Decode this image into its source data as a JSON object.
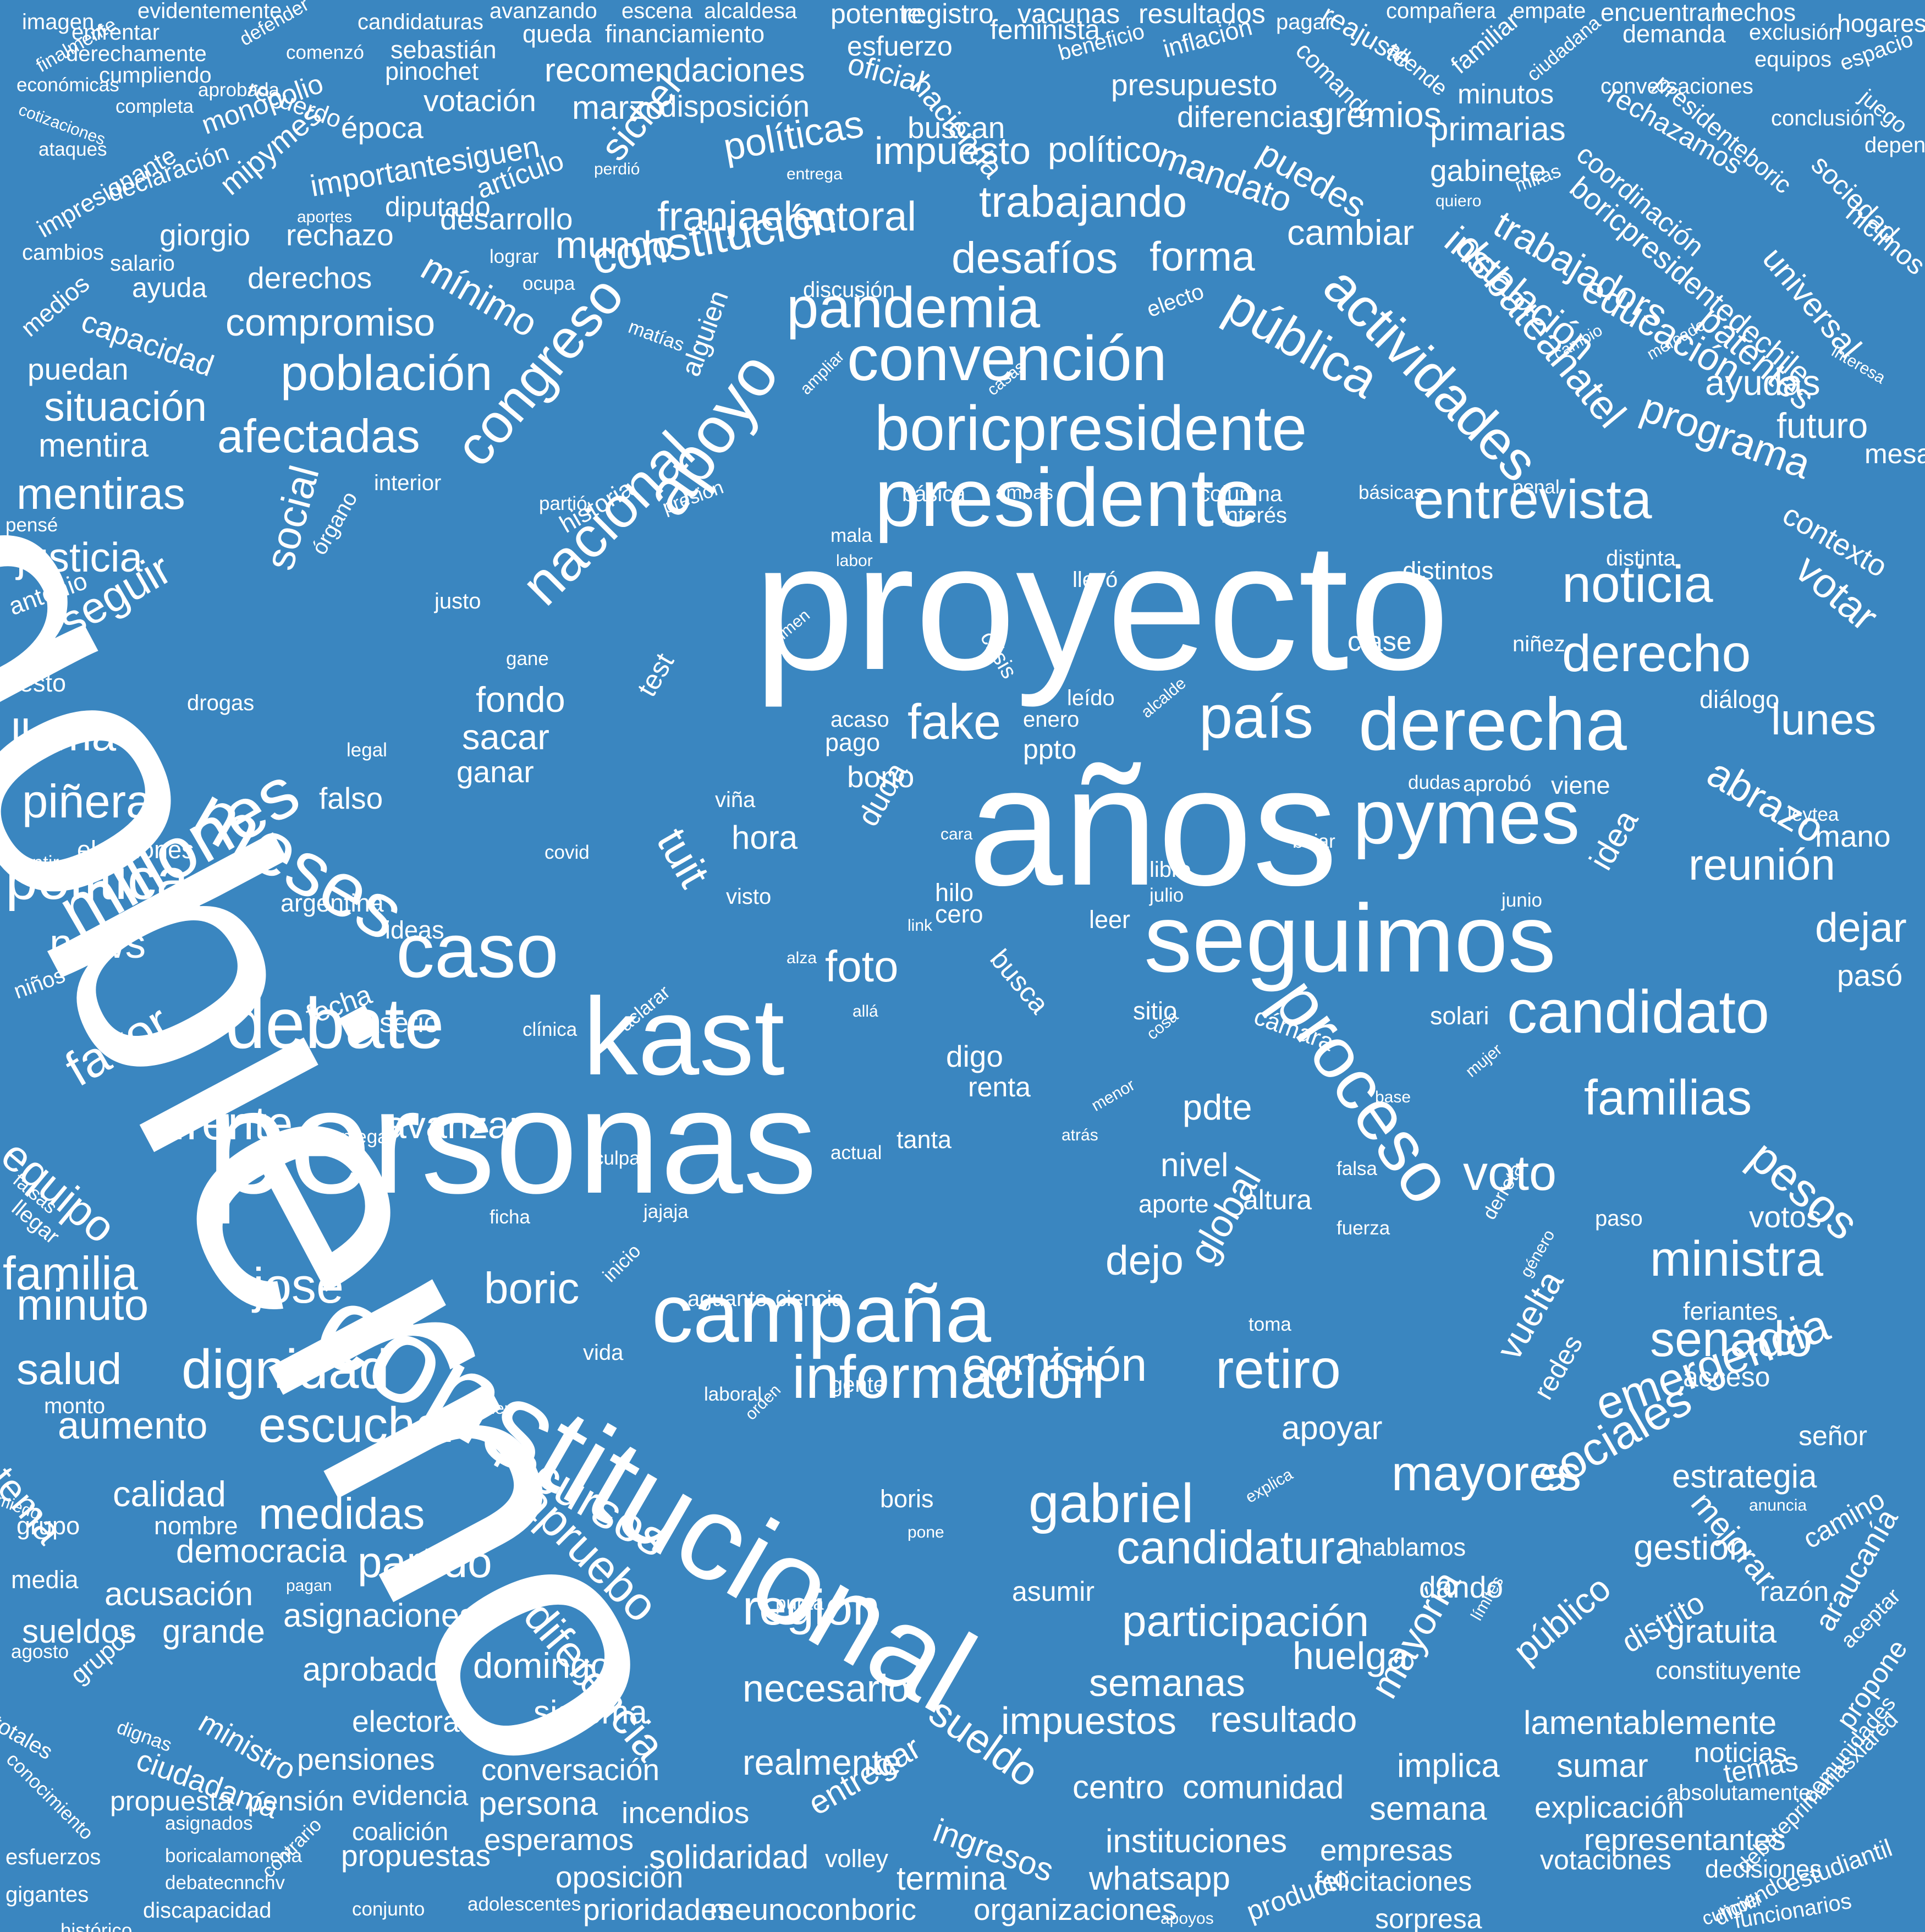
{
  "background_color": "#3a86c0",
  "text_color": "#ffffff",
  "words": [
    "gobierno",
    "proyecto",
    "personas",
    "años",
    "constitucional",
    "kast",
    "campaña",
    "seguimos",
    "presidente",
    "boricpresidente",
    "convención",
    "pandemia",
    "apoyo",
    "nacional",
    "congreso",
    "meses",
    "millones",
    "caso",
    "debate",
    "política",
    "pymes",
    "derecha",
    "país",
    "proceso",
    "candidato",
    "información",
    "entrevista",
    "noticia",
    "derecho",
    "actividades",
    "pública",
    "debateanatel",
    "programa",
    "constitución",
    "franjaelectoral",
    "trabajando",
    "desafíos",
    "forma",
    "mundo",
    "población",
    "afectadas",
    "compromiso",
    "mínimo",
    "sichel",
    "políticas",
    "impuesto",
    "político",
    "mandato",
    "puedes",
    "cambiar",
    "instalación",
    "favor",
    "frente",
    "equipo",
    "familia",
    "familias",
    "pesos",
    "ministra",
    "senado",
    "emergencia",
    "sociales",
    "mayores",
    "gabriel",
    "candidatura",
    "participación",
    "región",
    "recursos",
    "apruebo",
    "diferencia",
    "escuchar",
    "dignidad",
    "medidas",
    "partido",
    "retiro",
    "comisión",
    "voto",
    "fake",
    "foto",
    "tuit",
    "social",
    "justicia",
    "mentiras",
    "situación",
    "piñera",
    "llama",
    "seguir",
    "news",
    "minuto",
    "josé",
    "boric",
    "global",
    "dejo",
    "nivel",
    "pdte",
    "avanzar",
    "aumento",
    "salud",
    "tema",
    "calidad",
    "democracia",
    "acusación",
    "sueldos",
    "grande",
    "asignaciones",
    "aprobado",
    "domingo",
    "huelga",
    "semanas",
    "resultado",
    "impuestos",
    "sistema",
    "electoral",
    "pensiones",
    "conversación",
    "realmente",
    "sueldo",
    "entregar",
    "ingresos",
    "necesario",
    "mayoría",
    "público",
    "distrito",
    "gratuita",
    "lamentablemente",
    "sumar",
    "implica",
    "semana",
    "explicación",
    "representantes",
    "votaciones",
    "decisiones",
    "empresas",
    "instituciones",
    "centro",
    "comunidad",
    "whatsapp",
    "termina",
    "solidaridad",
    "incendios",
    "persona",
    "esperamos",
    "oposición",
    "prioridades",
    "meunoconboric",
    "organizaciones",
    "propuestas",
    "propuesta",
    "ministro",
    "ciudadanía",
    "evidencia",
    "pensión",
    "coalición",
    "volley",
    "felicitaciones",
    "sorpresa",
    "producto",
    "beneficios",
    "corresponde",
    "evidente",
    "humanos",
    "funcionarios",
    "estudiantil",
    "comunidades",
    "debateprimariasxlared",
    "absolutamente",
    "temas",
    "noticias",
    "propone",
    "aceptar",
    "constituyente",
    "araucanía",
    "razón",
    "camino",
    "mejorar",
    "gestión",
    "estrategia",
    "señor",
    "acceso",
    "feriantes",
    "votos",
    "abrazo",
    "lunes",
    "reunión",
    "idea",
    "dejar",
    "pasó",
    "mano",
    "votar",
    "contexto",
    "futuro",
    "ayudas",
    "mesa",
    "universal",
    "patentes",
    "educación",
    "trabajadors",
    "boricpresidentedechile",
    "coordinación",
    "rechazamos",
    "presidenteboric",
    "hicimos",
    "sociedad",
    "depende",
    "conclusión",
    "juego",
    "espacio",
    "hogares",
    "equipos",
    "conversaciones",
    "exclusión",
    "demanda",
    "encuentran",
    "hechos",
    "ciudadana",
    "compañera",
    "empate",
    "reajuste",
    "comando",
    "familiar",
    "allende",
    "minutos",
    "primarias",
    "gabinete",
    "gremios",
    "diferencias",
    "presupuesto",
    "inflación",
    "beneficio",
    "hacienda",
    "feminista",
    "vacunas",
    "resultados",
    "pagar",
    "oficial",
    "registro",
    "potente",
    "esfuerzo",
    "financiamiento",
    "recomendaciones",
    "escena",
    "alcaldesa",
    "avanzando",
    "candidaturas",
    "queda",
    "sebastián",
    "pinochet",
    "votación",
    "marzo",
    "disposición",
    "buscan",
    "época",
    "monopolio",
    "recuerdo",
    "comenzó",
    "cumpliendo",
    "aprobada",
    "derechamente",
    "enfrentar",
    "evidentemente",
    "imagen",
    "finalmente",
    "defender",
    "económicas",
    "cotizaciones",
    "completa",
    "ataques",
    "impresionante",
    "declaración",
    "mipymes",
    "importantesiguen",
    "artículo",
    "diputado",
    "desarrollo",
    "rechazo",
    "giorgio",
    "cambios",
    "medios",
    "salario",
    "ayuda",
    "derechos",
    "capacidad",
    "puedan",
    "mentira",
    "alguien",
    "discusión",
    "electo",
    "matías",
    "casas",
    "ampliar",
    "cambio",
    "mercado",
    "interesa",
    "básica",
    "ambas",
    "columna",
    "básicas",
    "penal",
    "interior",
    "partió",
    "pensé",
    "presión",
    "historia",
    "mala",
    "labor",
    "órgano",
    "antonio",
    "justo",
    "distintos",
    "distinta",
    "llevó",
    "interés",
    "crisis",
    "clase",
    "niñez",
    "test",
    "resto",
    "gane",
    "drogas",
    "fondo",
    "sacar",
    "ganar",
    "acaso",
    "enero",
    "pago",
    "ppto",
    "bono",
    "alcalde",
    "leído",
    "diálogo",
    "viña",
    "hora",
    "legal",
    "falso",
    "dudas",
    "aprobó",
    "viene",
    "leytea",
    "junio",
    "libre",
    "julio",
    "hilo",
    "cero",
    "cara",
    "duda",
    "mentir",
    "elecciones",
    "covid",
    "visto",
    "argentina",
    "ideas",
    "link",
    "leer",
    "alza",
    "bajar",
    "busca",
    "allá",
    "sitio",
    "cosa",
    "solari",
    "cámara",
    "digo",
    "renta",
    "aclarar",
    "clínica",
    "serio",
    "fecha",
    "niños",
    "menor",
    "mujer",
    "base",
    "atrás",
    "actual",
    "tanta",
    "culpa",
    "niega",
    "falsas",
    "llegar",
    "ficha",
    "jajaja",
    "falsa",
    "altura",
    "aporte",
    "fuerza",
    "paso",
    "derrota",
    "inicio",
    "aguante",
    "ciencia",
    "género",
    "toma",
    "vida",
    "gente",
    "laboral",
    "orden",
    "acceder",
    "monto",
    "vuelta",
    "redes",
    "boris",
    "nombre",
    "grupo",
    "miedo",
    "media",
    "pagan",
    "punta",
    "pone",
    "explica",
    "hablamos",
    "asumir",
    "dando",
    "límites",
    "anuncia",
    "agosto",
    "grupos",
    "totales",
    "dignas",
    "conocimiento",
    "asignados",
    "boricalamoneda",
    "debatecnnchv",
    "esfuerzos",
    "gigantes",
    "discapacidad",
    "histórico",
    "financiero",
    "función",
    "contrario",
    "conjunto",
    "estrecho",
    "adolescentes",
    "atribuciones",
    "apoyos",
    "cumplir",
    "diciendo",
    "apoyar",
    "perdió",
    "entrega",
    "aportes",
    "lograr",
    "ocupa",
    "quiero",
    "miras",
    "crimen"
  ]
}
